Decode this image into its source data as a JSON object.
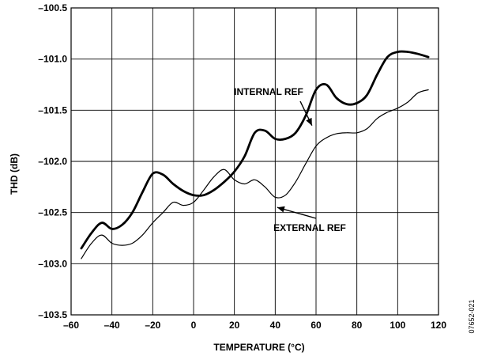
{
  "chart_data": {
    "type": "line",
    "title": "",
    "xlabel": "TEMPERATURE (°C)",
    "ylabel": "THD (dB)",
    "xlim": [
      -60,
      120
    ],
    "ylim": [
      -103.5,
      -100.5
    ],
    "xticks": [
      -60,
      -40,
      -20,
      0,
      20,
      40,
      60,
      80,
      100,
      120
    ],
    "xtick_labels": [
      "–60",
      "–40",
      "–20",
      "0",
      "20",
      "40",
      "60",
      "80",
      "100",
      "120"
    ],
    "yticks": [
      -100.5,
      -101.0,
      -101.5,
      -102.0,
      -102.5,
      -103.0,
      -103.5
    ],
    "ytick_labels": [
      "–100.5",
      "–101.0",
      "–101.5",
      "–102.0",
      "–102.5",
      "–103.0",
      "–103.5"
    ],
    "grid": true,
    "legend": "none",
    "series": [
      {
        "name": "INTERNAL REF",
        "line_weight": "thick",
        "color": "#000000",
        "x": [
          -55,
          -50,
          -45,
          -40,
          -35,
          -30,
          -25,
          -20,
          -15,
          -10,
          -5,
          0,
          5,
          10,
          15,
          20,
          25,
          30,
          35,
          40,
          45,
          50,
          55,
          60,
          65,
          70,
          75,
          80,
          85,
          90,
          95,
          100,
          105,
          110,
          115
        ],
        "y": [
          -102.85,
          -102.7,
          -102.6,
          -102.66,
          -102.62,
          -102.5,
          -102.3,
          -102.12,
          -102.13,
          -102.22,
          -102.29,
          -102.33,
          -102.33,
          -102.28,
          -102.2,
          -102.1,
          -101.95,
          -101.72,
          -101.7,
          -101.78,
          -101.78,
          -101.72,
          -101.55,
          -101.3,
          -101.25,
          -101.38,
          -101.44,
          -101.43,
          -101.35,
          -101.15,
          -100.98,
          -100.93,
          -100.93,
          -100.95,
          -100.98
        ]
      },
      {
        "name": "EXTERNAL REF",
        "line_weight": "thin",
        "color": "#000000",
        "x": [
          -55,
          -50,
          -45,
          -40,
          -35,
          -30,
          -25,
          -20,
          -15,
          -10,
          -5,
          0,
          5,
          10,
          15,
          20,
          25,
          30,
          35,
          40,
          45,
          50,
          55,
          60,
          65,
          70,
          75,
          80,
          85,
          90,
          95,
          100,
          105,
          110,
          115
        ],
        "y": [
          -102.95,
          -102.8,
          -102.72,
          -102.8,
          -102.82,
          -102.8,
          -102.72,
          -102.6,
          -102.5,
          -102.4,
          -102.43,
          -102.4,
          -102.28,
          -102.15,
          -102.08,
          -102.18,
          -102.22,
          -102.18,
          -102.25,
          -102.35,
          -102.33,
          -102.2,
          -102.02,
          -101.85,
          -101.77,
          -101.73,
          -101.72,
          -101.72,
          -101.68,
          -101.58,
          -101.52,
          -101.48,
          -101.42,
          -101.33,
          -101.3
        ]
      }
    ],
    "annotations": [
      {
        "text": "INTERNAL REF",
        "arrow_to": [
          58,
          -101.65
        ]
      },
      {
        "text": "EXTERNAL REF",
        "arrow_to": [
          41,
          -102.45
        ]
      }
    ],
    "figure_id": "07652-021"
  }
}
